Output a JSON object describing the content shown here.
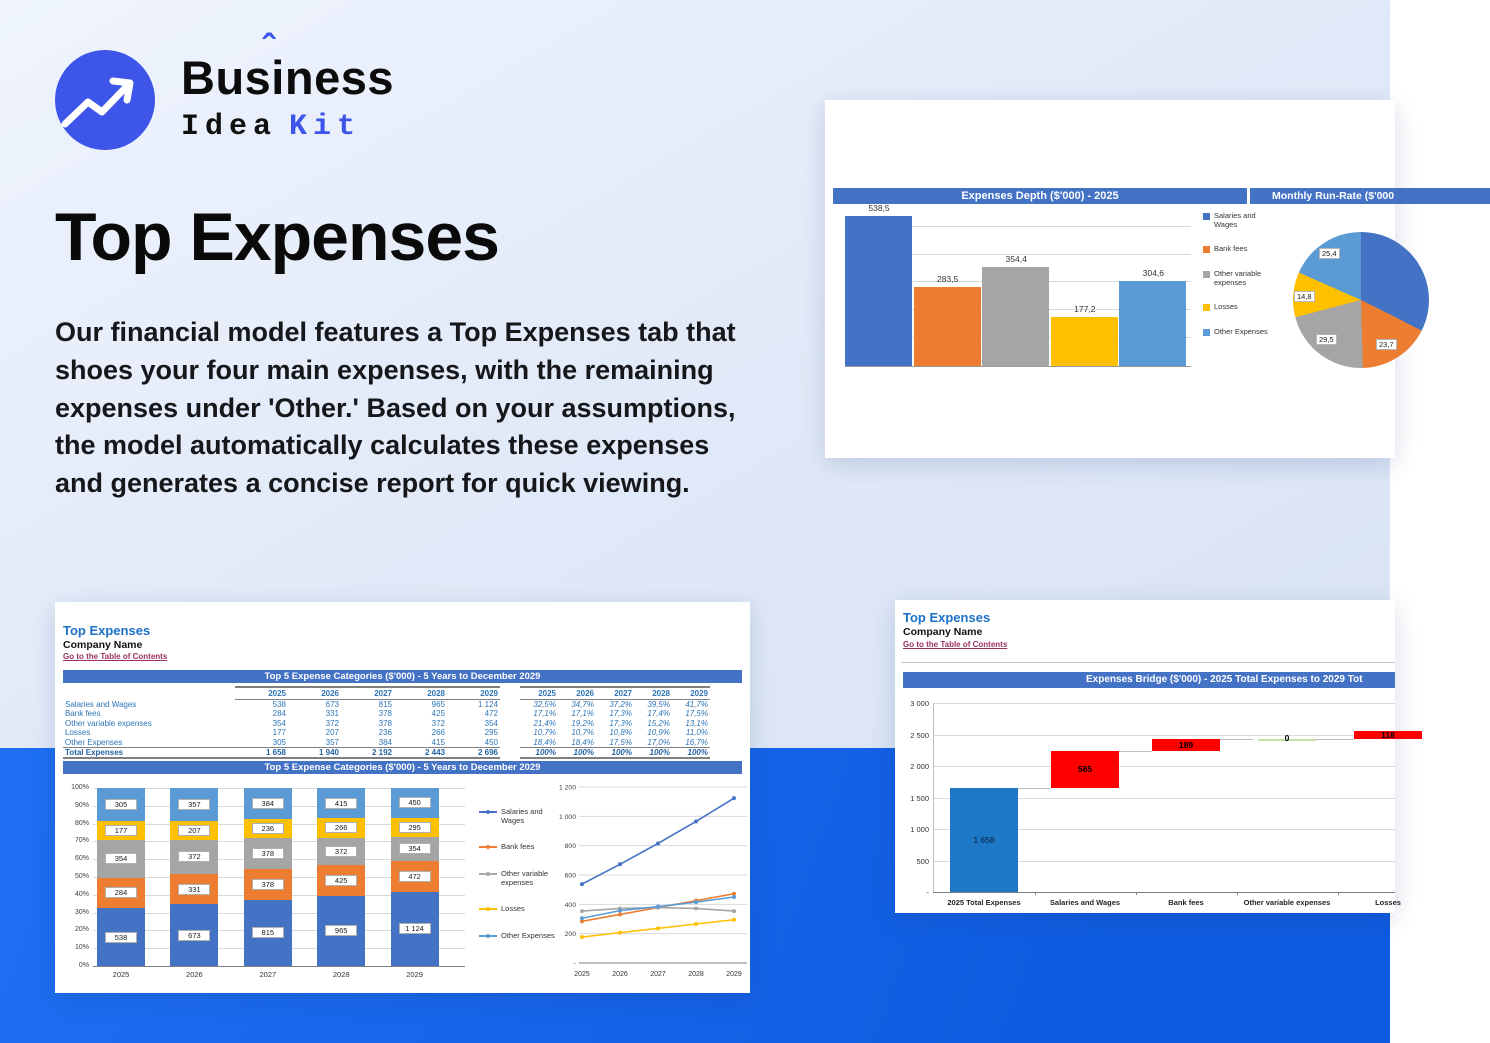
{
  "brand": {
    "word1_pre": "Bus",
    "word1_i": "i",
    "accent": "ˆ",
    "word1_post": "ness",
    "word2": "Idea",
    "word3": "Kit",
    "brand_blue": "#3d55e8"
  },
  "hero": {
    "title": "Top Expenses",
    "description": "Our financial model features a Top Expenses tab that shoes your four main expenses, with the remaining expenses under 'Other.' Based on your assumptions, the model automatically calculates these expenses and generates a concise report for quick viewing."
  },
  "sheet": {
    "title": "Top Expenses",
    "company": "Company Name",
    "toc_link": "Go to the Table of Contents"
  },
  "cards": {
    "top_right": {
      "bar_title": "Expenses Depth ($'000) - 2025",
      "pie_title": "Monthly Run-Rate ($'000"
    },
    "bottom_left": {
      "table_title": "Top 5 Expense Categories ($'000) - 5 Years to December 2029",
      "chart_title": "Top 5 Expense Categories ($'000) - 5 Years to December 2029"
    },
    "bottom_right": {
      "chart_title": "Expenses Bridge ($'000) - 2025 Total Expenses to 2029 Tot"
    }
  },
  "table": {
    "years": [
      "2025",
      "2026",
      "2027",
      "2028",
      "2029"
    ],
    "rows": [
      {
        "label": "Salaries and Wages",
        "values": [
          "538",
          "673",
          "815",
          "965",
          "1 124"
        ],
        "pcts": [
          "32,5%",
          "34,7%",
          "37,2%",
          "39,5%",
          "41,7%"
        ]
      },
      {
        "label": "Bank fees",
        "values": [
          "284",
          "331",
          "378",
          "425",
          "472"
        ],
        "pcts": [
          "17,1%",
          "17,1%",
          "17,3%",
          "17,4%",
          "17,5%"
        ]
      },
      {
        "label": "Other variable expenses",
        "values": [
          "354",
          "372",
          "378",
          "372",
          "354"
        ],
        "pcts": [
          "21,4%",
          "19,2%",
          "17,3%",
          "15,2%",
          "13,1%"
        ]
      },
      {
        "label": "Losses",
        "values": [
          "177",
          "207",
          "236",
          "266",
          "295"
        ],
        "pcts": [
          "10,7%",
          "10,7%",
          "10,8%",
          "10,9%",
          "11,0%"
        ]
      },
      {
        "label": "Other Expenses",
        "values": [
          "305",
          "357",
          "384",
          "415",
          "450"
        ],
        "pcts": [
          "18,4%",
          "18,4%",
          "17,5%",
          "17,0%",
          "16,7%"
        ]
      }
    ],
    "total": {
      "label": "Total Expenses",
      "values": [
        "1 658",
        "1 940",
        "2 192",
        "2 443",
        "2 696"
      ],
      "pcts": [
        "100%",
        "100%",
        "100%",
        "100%",
        "100%"
      ]
    }
  },
  "chart_data": [
    {
      "id": "expenses-depth",
      "type": "bar",
      "title": "Expenses Depth ($'000) - 2025",
      "categories": [
        "Salaries and Wages",
        "Bank fees",
        "Other variable expenses",
        "Losses",
        "Other Expenses"
      ],
      "values": [
        538.5,
        283.5,
        354.4,
        177.2,
        304.6
      ],
      "value_labels": [
        "538,5",
        "283,5",
        "354,4",
        "177,2",
        "304,6"
      ],
      "colors": [
        "#4472C4",
        "#ED7D31",
        "#A5A5A5",
        "#FFC000",
        "#5B9BD5"
      ],
      "ylim": [
        0,
        550
      ],
      "grid_step": 100,
      "legend": [
        "Salaries and Wages",
        "Bank fees",
        "Other variable expenses",
        "Losses",
        "Other Expenses"
      ],
      "legend_position": "right"
    },
    {
      "id": "monthly-run-rate",
      "type": "pie",
      "title": "Monthly Run-Rate ($'000",
      "slices": [
        {
          "name": "Salaries and Wages",
          "value": 44.8,
          "label": "",
          "color": "#4472C4"
        },
        {
          "name": "Bank fees",
          "value": 23.7,
          "label": "23,7",
          "color": "#ED7D31"
        },
        {
          "name": "Other variable expenses",
          "value": 29.5,
          "label": "29,5",
          "color": "#A5A5A5"
        },
        {
          "name": "Losses",
          "value": 14.8,
          "label": "14,8",
          "color": "#FFC000"
        },
        {
          "name": "Other Expenses",
          "value": 25.4,
          "label": "25,4",
          "color": "#5B9BD5"
        }
      ]
    },
    {
      "id": "top5-stacked",
      "type": "bar",
      "subtype": "percent-stacked",
      "title": "Top 5 Expense Categories ($'000) - 5 Years to December 2029",
      "categories": [
        "2025",
        "2026",
        "2027",
        "2028",
        "2029"
      ],
      "series": [
        {
          "name": "Salaries and Wages",
          "color": "#4472C4",
          "values": [
            538,
            673,
            815,
            965,
            1124
          ],
          "value_labels": [
            "538",
            "673",
            "815",
            "965",
            "1 124"
          ],
          "pct": [
            32.5,
            34.7,
            37.2,
            39.5,
            41.7
          ]
        },
        {
          "name": "Bank fees",
          "color": "#ED7D31",
          "values": [
            284,
            331,
            378,
            425,
            472
          ],
          "value_labels": [
            "284",
            "331",
            "378",
            "425",
            "472"
          ],
          "pct": [
            17.1,
            17.1,
            17.3,
            17.4,
            17.5
          ]
        },
        {
          "name": "Other variable expenses",
          "color": "#A5A5A5",
          "values": [
            354,
            372,
            378,
            372,
            354
          ],
          "value_labels": [
            "354",
            "372",
            "378",
            "372",
            "354"
          ],
          "pct": [
            21.4,
            19.2,
            17.3,
            15.2,
            13.1
          ]
        },
        {
          "name": "Losses",
          "color": "#FFC000",
          "values": [
            177,
            207,
            236,
            266,
            295
          ],
          "value_labels": [
            "177",
            "207",
            "236",
            "266",
            "295"
          ],
          "pct": [
            10.7,
            10.7,
            10.8,
            10.9,
            11.0
          ]
        },
        {
          "name": "Other Expenses",
          "color": "#5B9BD5",
          "values": [
            305,
            357,
            384,
            415,
            450
          ],
          "value_labels": [
            "305",
            "357",
            "384",
            "415",
            "450"
          ],
          "pct": [
            18.4,
            18.4,
            17.5,
            17.0,
            16.7
          ]
        }
      ],
      "yticks": [
        "0%",
        "10%",
        "20%",
        "30%",
        "40%",
        "50%",
        "60%",
        "70%",
        "80%",
        "90%",
        "100%"
      ]
    },
    {
      "id": "top5-lines",
      "type": "line",
      "categories": [
        "2025",
        "2026",
        "2027",
        "2028",
        "2029"
      ],
      "series": [
        {
          "name": "Salaries and Wages",
          "color": "#4472C4",
          "values": [
            538,
            673,
            815,
            965,
            1124
          ]
        },
        {
          "name": "Bank fees",
          "color": "#ED7D31",
          "values": [
            284,
            331,
            378,
            425,
            472
          ]
        },
        {
          "name": "Other variable expenses",
          "color": "#A5A5A5",
          "values": [
            354,
            372,
            378,
            372,
            354
          ]
        },
        {
          "name": "Losses",
          "color": "#FFC000",
          "values": [
            177,
            207,
            236,
            266,
            295
          ]
        },
        {
          "name": "Other Expenses",
          "color": "#5B9BD5",
          "values": [
            305,
            357,
            384,
            415,
            450
          ]
        }
      ],
      "ylim": [
        0,
        1200
      ],
      "yticks_top_down": [
        "1 200",
        "1 000",
        "800",
        "600",
        "400",
        "200",
        "-"
      ],
      "legend": [
        "Salaries and Wages",
        "Bank fees",
        "Other variable expenses",
        "Losses",
        "Other Expenses"
      ],
      "legend_position": "left"
    },
    {
      "id": "expenses-bridge",
      "type": "waterfall",
      "title": "Expenses Bridge ($'000) - 2025 Total Expenses to 2029 Tot",
      "categories": [
        "2025 Total Expenses",
        "Salaries and Wages",
        "Bank fees",
        "Other variable expenses",
        "Losses"
      ],
      "values": [
        1658,
        585,
        189,
        0,
        118
      ],
      "value_labels": [
        "1 658",
        "585",
        "189",
        "0",
        "118"
      ],
      "bar_starts": [
        0,
        1658,
        2243,
        2432,
        2432
      ],
      "colors": {
        "total": "#1E78C8",
        "increase": "#FF0000",
        "zero": "#C5E0A4"
      },
      "ylim": [
        0,
        3000
      ],
      "yticks_top_down": [
        "3 000",
        "2 500",
        "2 000",
        "1 500",
        "1 000",
        "500",
        "-"
      ]
    }
  ],
  "colors": {
    "excel_header": "#4472C4",
    "sheet_title_blue": "#1B72C8",
    "toc_link": "#9A3162",
    "table_text": "#2E75B6",
    "background_bottom_band": "#1463E6",
    "brand_blue": "#3D55E8"
  }
}
